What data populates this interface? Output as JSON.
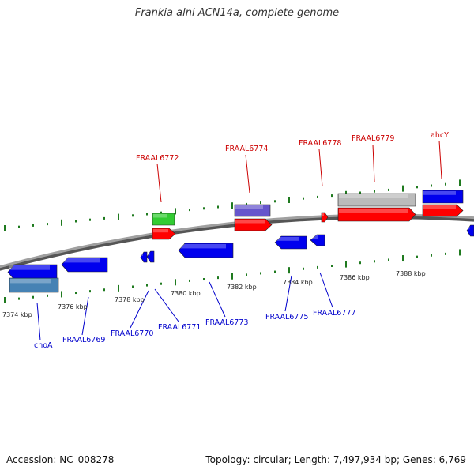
{
  "title": "Frankia alni ACN14a, complete genome",
  "footer": {
    "accession": "Accession: NC_008278",
    "summary": "Topology: circular; Length: 7,497,934 bp; Genes: 6,769"
  },
  "colors": {
    "background": "#ffffff",
    "backbone": "#8c8c8c",
    "forward_label": "#cc0000",
    "reverse_label": "#0000cc",
    "tick": "#1f7a1f",
    "gene_red": "#ff0000",
    "gene_blue": "#0000ee",
    "gene_green": "#33cc33",
    "gene_violet": "#6655cc",
    "gene_grey": "#bbbbbb",
    "gene_steelblue": "#4682b4"
  },
  "ruler_labels": [
    "7374 kbp",
    "7376 kbp",
    "7378 kbp",
    "7380 kbp",
    "7382 kbp",
    "7384 kbp",
    "7386 kbp",
    "7388 kbp"
  ],
  "forward_labels": [
    "FRAAL6772",
    "FRAAL6774",
    "FRAAL6778",
    "FRAAL6779",
    "ahcY"
  ],
  "reverse_labels": [
    "choA",
    "FRAAL6769",
    "FRAAL6770",
    "FRAAL6771",
    "FRAAL6773",
    "FRAAL6775",
    "FRAAL6777"
  ]
}
